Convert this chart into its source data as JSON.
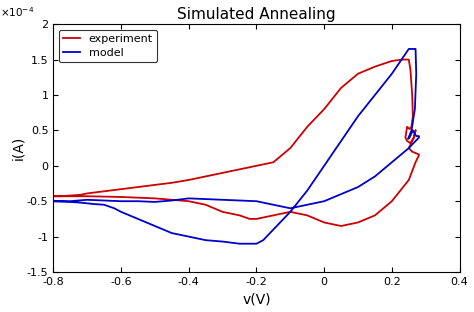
{
  "title": "Simulated Annealing",
  "xlabel": "v(V)",
  "ylabel": "i(A)",
  "xlim": [
    -0.8,
    0.4
  ],
  "ylim": [
    -0.00015,
    0.0002
  ],
  "xticks": [
    -0.8,
    -0.6,
    -0.4,
    -0.2,
    0.0,
    0.2,
    0.4
  ],
  "ytick_vals": [
    -0.00015,
    -0.0001,
    -5e-05,
    0.0,
    5e-05,
    0.0001,
    0.00015,
    0.0002
  ],
  "ytick_labels": [
    "-1.5",
    "-1",
    "-0.5",
    "0",
    "0.5",
    "1",
    "1.5",
    "2"
  ],
  "exp_color": "#cc0000",
  "model_color": "#0000cc",
  "legend_labels": [
    "experiment",
    "model"
  ],
  "background_color": "#ffffff",
  "exp_v": [
    -0.8,
    -0.78,
    -0.75,
    -0.72,
    -0.7,
    -0.65,
    -0.6,
    -0.55,
    -0.5,
    -0.45,
    -0.4,
    -0.35,
    -0.3,
    -0.25,
    -0.2,
    -0.15,
    -0.1,
    -0.05,
    0.0,
    0.05,
    0.1,
    0.15,
    0.2,
    0.23,
    0.25,
    0.255,
    0.26,
    0.262,
    0.258,
    0.252,
    0.245,
    0.24,
    0.245,
    0.255,
    0.265,
    0.27,
    0.265,
    0.255,
    0.25,
    0.26,
    0.27,
    0.28,
    0.28,
    0.27,
    0.25,
    0.2,
    0.15,
    0.1,
    0.05,
    0.0,
    -0.05,
    -0.1,
    -0.15,
    -0.2,
    -0.22,
    -0.25,
    -0.3,
    -0.35,
    -0.4,
    -0.45,
    -0.5,
    -0.55,
    -0.6,
    -0.65,
    -0.7,
    -0.75,
    -0.8
  ],
  "exp_i": [
    -4.3e-05,
    -4.3e-05,
    -4.2e-05,
    -4.1e-05,
    -3.9e-05,
    -3.6e-05,
    -3.3e-05,
    -3e-05,
    -2.7e-05,
    -2.4e-05,
    -2e-05,
    -1.5e-05,
    -1e-05,
    -5e-06,
    0.0,
    5e-06,
    2.5e-05,
    5.5e-05,
    8e-05,
    0.00011,
    0.00013,
    0.00014,
    0.000148,
    0.00015,
    0.00015,
    0.000135,
    0.0001,
    7e-05,
    5.5e-05,
    5.2e-05,
    5.5e-05,
    4e-05,
    3.5e-05,
    3.2e-05,
    4e-05,
    5e-05,
    4e-05,
    3e-05,
    2.5e-05,
    2e-05,
    1.8e-05,
    1.6e-05,
    1.5e-05,
    5e-06,
    -2e-05,
    -5e-05,
    -7e-05,
    -8e-05,
    -8.5e-05,
    -8e-05,
    -7e-05,
    -6.5e-05,
    -7e-05,
    -7.5e-05,
    -7.5e-05,
    -7e-05,
    -6.5e-05,
    -5.5e-05,
    -5e-05,
    -4.8e-05,
    -4.6e-05,
    -4.5e-05,
    -4.4e-05,
    -4.35e-05,
    -4.3e-05,
    -4.3e-05,
    -4.3e-05
  ],
  "mod_v": [
    -0.8,
    -0.75,
    -0.72,
    -0.7,
    -0.68,
    -0.65,
    -0.62,
    -0.6,
    -0.55,
    -0.5,
    -0.45,
    -0.4,
    -0.35,
    -0.3,
    -0.25,
    -0.22,
    -0.2,
    -0.18,
    -0.15,
    -0.1,
    -0.05,
    0.0,
    0.05,
    0.1,
    0.15,
    0.2,
    0.25,
    0.27,
    0.272,
    0.268,
    0.258,
    0.248,
    0.252,
    0.262,
    0.272,
    0.28,
    0.28,
    0.27,
    0.25,
    0.2,
    0.15,
    0.1,
    0.05,
    0.0,
    -0.05,
    -0.1,
    -0.15,
    -0.2,
    -0.25,
    -0.3,
    -0.35,
    -0.4,
    -0.45,
    -0.5,
    -0.55,
    -0.6,
    -0.65,
    -0.7,
    -0.75,
    -0.8
  ],
  "mod_i": [
    -5e-05,
    -5.1e-05,
    -5.2e-05,
    -5.3e-05,
    -5.4e-05,
    -5.5e-05,
    -6e-05,
    -6.5e-05,
    -7.5e-05,
    -8.5e-05,
    -9.5e-05,
    -0.0001,
    -0.000105,
    -0.000107,
    -0.00011,
    -0.00011,
    -0.00011,
    -0.000105,
    -9e-05,
    -6.5e-05,
    -3.5e-05,
    0.0,
    3.5e-05,
    7e-05,
    0.0001,
    0.00013,
    0.000165,
    0.000165,
    0.00013,
    8e-05,
    5e-05,
    3.8e-05,
    4e-05,
    5e-05,
    4.2e-05,
    4.2e-05,
    4e-05,
    3.5e-05,
    2.5e-05,
    5e-06,
    -1.5e-05,
    -3e-05,
    -4e-05,
    -5e-05,
    -5.5e-05,
    -6e-05,
    -5.5e-05,
    -5e-05,
    -4.9e-05,
    -4.8e-05,
    -4.7e-05,
    -4.6e-05,
    -4.9e-05,
    -5.1e-05,
    -5e-05,
    -5e-05,
    -4.9e-05,
    -4.8e-05,
    -5e-05,
    -5e-05
  ]
}
